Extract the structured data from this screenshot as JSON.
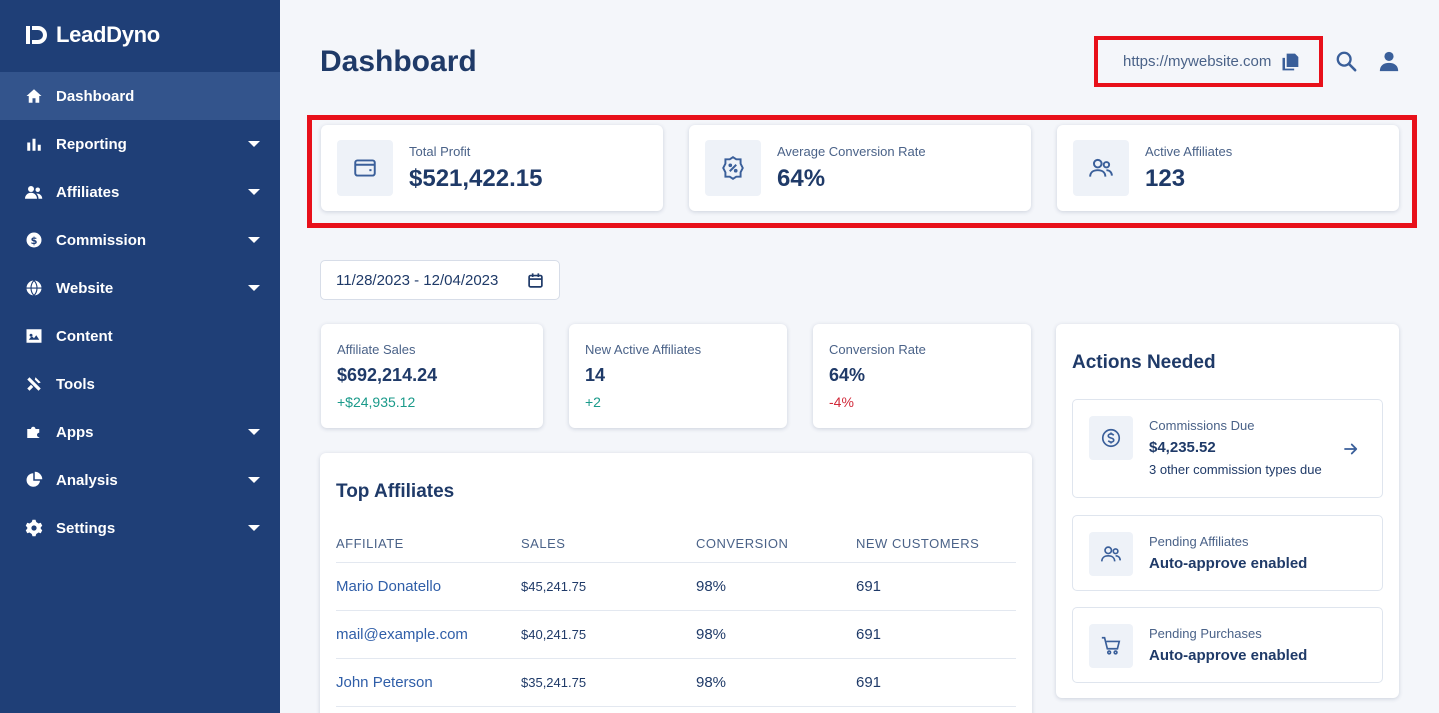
{
  "app": {
    "name": "LeadDyno"
  },
  "sidebar": {
    "items": [
      {
        "label": "Dashboard",
        "icon": "home-icon",
        "active": true,
        "has_caret": false
      },
      {
        "label": "Reporting",
        "icon": "bar-chart-icon",
        "active": false,
        "has_caret": true
      },
      {
        "label": "Affiliates",
        "icon": "users-icon",
        "active": false,
        "has_caret": true
      },
      {
        "label": "Commission",
        "icon": "dollar-circle-icon",
        "active": false,
        "has_caret": true
      },
      {
        "label": "Website",
        "icon": "globe-icon",
        "active": false,
        "has_caret": true
      },
      {
        "label": "Content",
        "icon": "image-icon",
        "active": false,
        "has_caret": false
      },
      {
        "label": "Tools",
        "icon": "tools-icon",
        "active": false,
        "has_caret": false
      },
      {
        "label": "Apps",
        "icon": "puzzle-icon",
        "active": false,
        "has_caret": true
      },
      {
        "label": "Analysis",
        "icon": "pie-chart-icon",
        "active": false,
        "has_caret": true
      },
      {
        "label": "Settings",
        "icon": "gear-icon",
        "active": false,
        "has_caret": true
      }
    ]
  },
  "header": {
    "title": "Dashboard",
    "website_url": "https://mywebsite.com"
  },
  "kpis": [
    {
      "label": "Total Profit",
      "value": "$521,422.15",
      "icon": "wallet-icon"
    },
    {
      "label": "Average Conversion Rate",
      "value": "64%",
      "icon": "percent-badge-icon"
    },
    {
      "label": "Active Affiliates",
      "value": "123",
      "icon": "users-icon"
    }
  ],
  "date_range": "11/28/2023 - 12/04/2023",
  "stats": [
    {
      "label": "Affiliate Sales",
      "value": "$692,214.24",
      "change": "+$24,935.12",
      "trend": "up"
    },
    {
      "label": "New Active Affiliates",
      "value": "14",
      "change": "+2",
      "trend": "up"
    },
    {
      "label": "Conversion Rate",
      "value": "64%",
      "change": "-4%",
      "trend": "down"
    }
  ],
  "top_affiliates": {
    "title": "Top Affiliates",
    "columns": [
      "AFFILIATE",
      "SALES",
      "CONVERSION",
      "NEW CUSTOMERS"
    ],
    "rows": [
      {
        "affiliate": "Mario Donatello",
        "sales": "$45,241.75",
        "conversion": "98%",
        "new_customers": "691"
      },
      {
        "affiliate": "mail@example.com",
        "sales": "$40,241.75",
        "conversion": "98%",
        "new_customers": "691"
      },
      {
        "affiliate": "John Peterson",
        "sales": "$35,241.75",
        "conversion": "98%",
        "new_customers": "691"
      }
    ]
  },
  "actions": {
    "title": "Actions Needed",
    "items": [
      {
        "label": "Commissions Due",
        "value": "$4,235.52",
        "sub": "3 other commission types due",
        "icon": "dollar-circle-icon"
      },
      {
        "label": "Pending Affiliates",
        "value": "Auto-approve enabled",
        "icon": "users-icon"
      },
      {
        "label": "Pending Purchases",
        "value": "Auto-approve enabled",
        "icon": "cart-icon"
      }
    ]
  },
  "colors": {
    "sidebar_bg": "#1f3f77",
    "sidebar_active": "#33548c",
    "primary_text": "#1f3a68",
    "positive": "#1a9a8a",
    "negative": "#d12a3a",
    "highlight": "#e8101a"
  }
}
